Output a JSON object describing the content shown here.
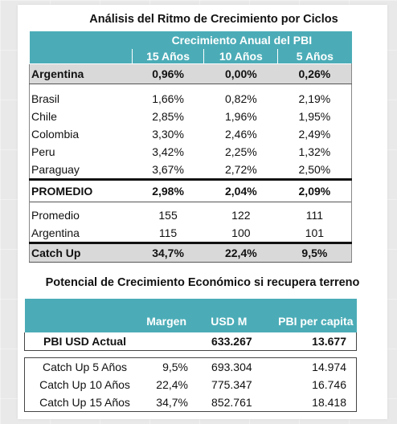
{
  "table1": {
    "title": "Análisis del Ritmo de Crecimiento por Ciclos",
    "super_header": "Crecimiento Anual del PBI",
    "columns": [
      "15 Años",
      "10 Años",
      "5 Años"
    ],
    "highlight_row": {
      "label": "Argentina",
      "values": [
        "0,96%",
        "0,00%",
        "0,26%"
      ]
    },
    "countries": [
      {
        "label": "Brasil",
        "values": [
          "1,66%",
          "0,82%",
          "2,19%"
        ]
      },
      {
        "label": "Chile",
        "values": [
          "2,85%",
          "1,96%",
          "1,95%"
        ]
      },
      {
        "label": "Colombia",
        "values": [
          "3,30%",
          "2,46%",
          "2,49%"
        ]
      },
      {
        "label": "Peru",
        "values": [
          "3,42%",
          "2,25%",
          "1,32%"
        ]
      },
      {
        "label": "Paraguay",
        "values": [
          "3,67%",
          "2,72%",
          "2,50%"
        ]
      }
    ],
    "average_row": {
      "label": "PROMEDIO",
      "values": [
        "2,98%",
        "2,04%",
        "2,09%"
      ]
    },
    "levels": [
      {
        "label": "Promedio",
        "values": [
          "155",
          "122",
          "111"
        ]
      },
      {
        "label": "Argentina",
        "values": [
          "115",
          "100",
          "101"
        ]
      }
    ],
    "catchup_row": {
      "label": "Catch Up",
      "values": [
        "34,7%",
        "22,4%",
        "9,5%"
      ]
    }
  },
  "table2": {
    "title": "Potencial de Crecimiento Económico si recupera terreno",
    "headers": [
      "Margen",
      "USD M",
      "PBI per capita"
    ],
    "pbi_row": {
      "label": "PBI USD Actual",
      "usd": "633.267",
      "per_capita": "13.677"
    },
    "rows": [
      {
        "label": "Catch Up 5 Años",
        "margin": "9,5%",
        "usd": "693.304",
        "per_capita": "14.974"
      },
      {
        "label": "Catch Up 10 Años",
        "margin": "22,4%",
        "usd": "775.347",
        "per_capita": "16.746"
      },
      {
        "label": "Catch Up 15 Años",
        "margin": "34,7%",
        "usd": "852.761",
        "per_capita": "18.418"
      }
    ]
  },
  "colors": {
    "accent": "#4bacb7",
    "highlight_gray": "#d9d9d9"
  }
}
